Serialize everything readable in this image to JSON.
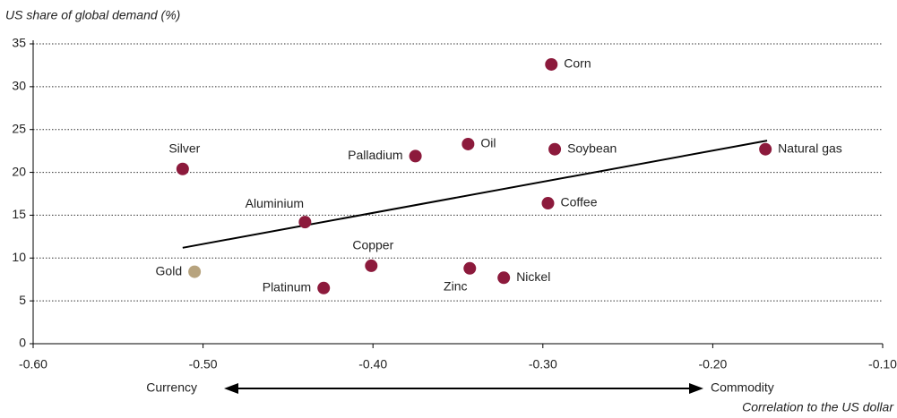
{
  "chart_data": {
    "type": "scatter",
    "y_label": "US share of global demand (%)",
    "x_label": "Correlation to the US dollar",
    "left_annotation": "Currency",
    "right_annotation": "Commodity",
    "labels": [
      "Corn",
      "Silver",
      "Gold",
      "Aluminium",
      "Palladium",
      "Oil",
      "Soybean",
      "Natural gas",
      "Coffee",
      "Copper",
      "Platinum",
      "Zinc",
      "Nickel"
    ],
    "x": [
      -0.295,
      -0.512,
      -0.505,
      -0.44,
      -0.375,
      -0.344,
      -0.293,
      -0.169,
      -0.297,
      -0.401,
      -0.429,
      -0.343,
      -0.323
    ],
    "y": [
      32.6,
      20.4,
      8.4,
      14.2,
      21.9,
      23.3,
      22.7,
      22.7,
      16.4,
      9.1,
      6.5,
      8.8,
      7.7
    ],
    "colors": [
      "#8c1a3c",
      "#8c1a3c",
      "#b7a37e",
      "#8c1a3c",
      "#8c1a3c",
      "#8c1a3c",
      "#8c1a3c",
      "#8c1a3c",
      "#8c1a3c",
      "#8c1a3c",
      "#8c1a3c",
      "#8c1a3c",
      "#8c1a3c"
    ],
    "trend_line": {
      "x": [
        -0.512,
        -0.168
      ],
      "y": [
        11.2,
        23.7
      ],
      "color": "#000000"
    },
    "xlim": [
      -0.6,
      -0.1
    ],
    "xticks": [
      {
        "value": -0.6,
        "label": "-0.60"
      },
      {
        "value": -0.5,
        "label": "-0.50"
      },
      {
        "value": -0.4,
        "label": "-0.40"
      },
      {
        "value": -0.3,
        "label": "-0.30"
      },
      {
        "value": -0.2,
        "label": "-0.20"
      },
      {
        "value": -0.1,
        "label": "-0.10"
      }
    ],
    "ylim": [
      0,
      35
    ],
    "yticks": [
      0,
      5,
      10,
      15,
      20,
      25,
      30,
      35
    ],
    "grid": true
  }
}
